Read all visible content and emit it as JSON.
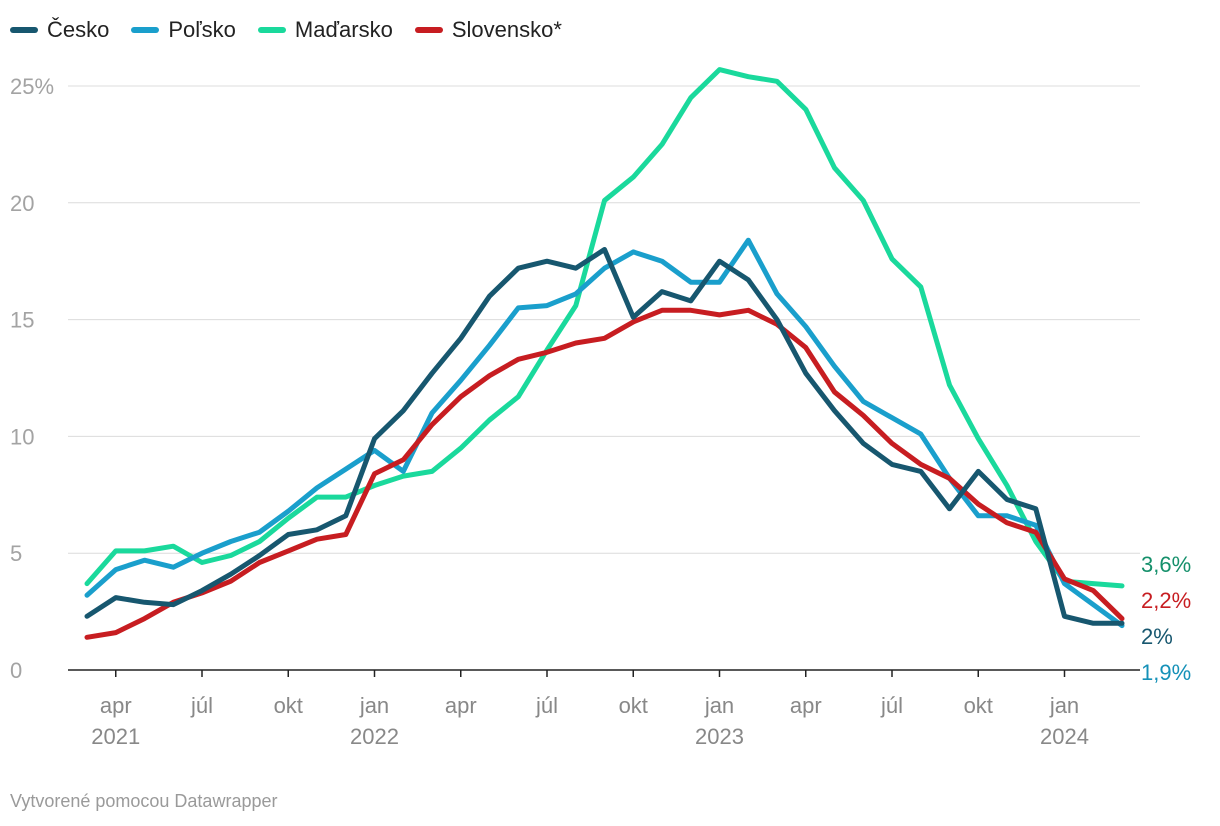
{
  "footer": {
    "credit": "Vytvorené pomocou Datawrapper"
  },
  "chart_data": {
    "type": "line",
    "title": "",
    "xlabel": "",
    "ylabel": "",
    "ylim": [
      0,
      25
    ],
    "grid": true,
    "legend_position": "top-left",
    "y_ticks": [
      {
        "value": 0,
        "label": "0"
      },
      {
        "value": 5,
        "label": "5"
      },
      {
        "value": 10,
        "label": "10"
      },
      {
        "value": 15,
        "label": "15"
      },
      {
        "value": 20,
        "label": "20"
      },
      {
        "value": 25,
        "label": "25%"
      }
    ],
    "x_ticks": [
      {
        "month": "2021-04",
        "label": "apr",
        "year": "2021"
      },
      {
        "month": "2021-07",
        "label": "júl",
        "year": ""
      },
      {
        "month": "2021-10",
        "label": "okt",
        "year": ""
      },
      {
        "month": "2022-01",
        "label": "jan",
        "year": "2022"
      },
      {
        "month": "2022-04",
        "label": "apr",
        "year": ""
      },
      {
        "month": "2022-07",
        "label": "júl",
        "year": ""
      },
      {
        "month": "2022-10",
        "label": "okt",
        "year": ""
      },
      {
        "month": "2023-01",
        "label": "jan",
        "year": "2023"
      },
      {
        "month": "2023-04",
        "label": "apr",
        "year": ""
      },
      {
        "month": "2023-07",
        "label": "júl",
        "year": ""
      },
      {
        "month": "2023-10",
        "label": "okt",
        "year": ""
      },
      {
        "month": "2024-01",
        "label": "jan",
        "year": "2024"
      }
    ],
    "x": [
      "2021-03",
      "2021-04",
      "2021-05",
      "2021-06",
      "2021-07",
      "2021-08",
      "2021-09",
      "2021-10",
      "2021-11",
      "2021-12",
      "2022-01",
      "2022-02",
      "2022-03",
      "2022-04",
      "2022-05",
      "2022-06",
      "2022-07",
      "2022-08",
      "2022-09",
      "2022-10",
      "2022-11",
      "2022-12",
      "2023-01",
      "2023-02",
      "2023-03",
      "2023-04",
      "2023-05",
      "2023-06",
      "2023-07",
      "2023-08",
      "2023-09",
      "2023-10",
      "2023-11",
      "2023-12",
      "2024-01",
      "2024-02",
      "2024-03"
    ],
    "series": [
      {
        "name": "Maďarsko",
        "color": "#1ad99c",
        "end_label": "3,6%",
        "end_label_color": "#15906b",
        "values": [
          3.7,
          5.1,
          5.1,
          5.3,
          4.6,
          4.9,
          5.5,
          6.5,
          7.4,
          7.4,
          7.9,
          8.3,
          8.5,
          9.5,
          10.7,
          11.7,
          13.7,
          15.6,
          20.1,
          21.1,
          22.5,
          24.5,
          25.7,
          25.4,
          25.2,
          24.0,
          21.5,
          20.1,
          17.6,
          16.4,
          12.2,
          9.9,
          7.9,
          5.5,
          3.8,
          3.7,
          3.6
        ]
      },
      {
        "name": "Poľsko",
        "color": "#1a9fcc",
        "end_label": "1,9%",
        "end_label_color": "#1591b8",
        "values": [
          3.2,
          4.3,
          4.7,
          4.4,
          5.0,
          5.5,
          5.9,
          6.8,
          7.8,
          8.6,
          9.4,
          8.5,
          11.0,
          12.4,
          13.9,
          15.5,
          15.6,
          16.1,
          17.2,
          17.9,
          17.5,
          16.6,
          16.6,
          18.4,
          16.1,
          14.7,
          13.0,
          11.5,
          10.8,
          10.1,
          8.2,
          6.6,
          6.6,
          6.2,
          3.7,
          2.8,
          1.9
        ]
      },
      {
        "name": "Slovensko*",
        "color": "#c71d21",
        "end_label": "2,2%",
        "end_label_color": "#c71d21",
        "values": [
          1.4,
          1.6,
          2.2,
          2.9,
          3.3,
          3.8,
          4.6,
          5.1,
          5.6,
          5.8,
          8.4,
          9.0,
          10.5,
          11.7,
          12.6,
          13.3,
          13.6,
          14.0,
          14.2,
          14.9,
          15.4,
          15.4,
          15.2,
          15.4,
          14.8,
          13.8,
          11.9,
          10.9,
          9.7,
          8.8,
          8.2,
          7.1,
          6.3,
          5.9,
          3.9,
          3.4,
          2.2
        ]
      },
      {
        "name": "Česko",
        "color": "#17576f",
        "end_label": "2%",
        "end_label_color": "#17576f",
        "values": [
          2.3,
          3.1,
          2.9,
          2.8,
          3.4,
          4.1,
          4.9,
          5.8,
          6.0,
          6.6,
          9.9,
          11.1,
          12.7,
          14.2,
          16.0,
          17.2,
          17.5,
          17.2,
          18.0,
          15.1,
          16.2,
          15.8,
          17.5,
          16.7,
          15.0,
          12.7,
          11.1,
          9.7,
          8.8,
          8.5,
          6.9,
          8.5,
          7.3,
          6.9,
          2.3,
          2.0,
          2.0
        ]
      }
    ],
    "legend_order": [
      "Česko",
      "Poľsko",
      "Maďarsko",
      "Slovensko*"
    ]
  }
}
